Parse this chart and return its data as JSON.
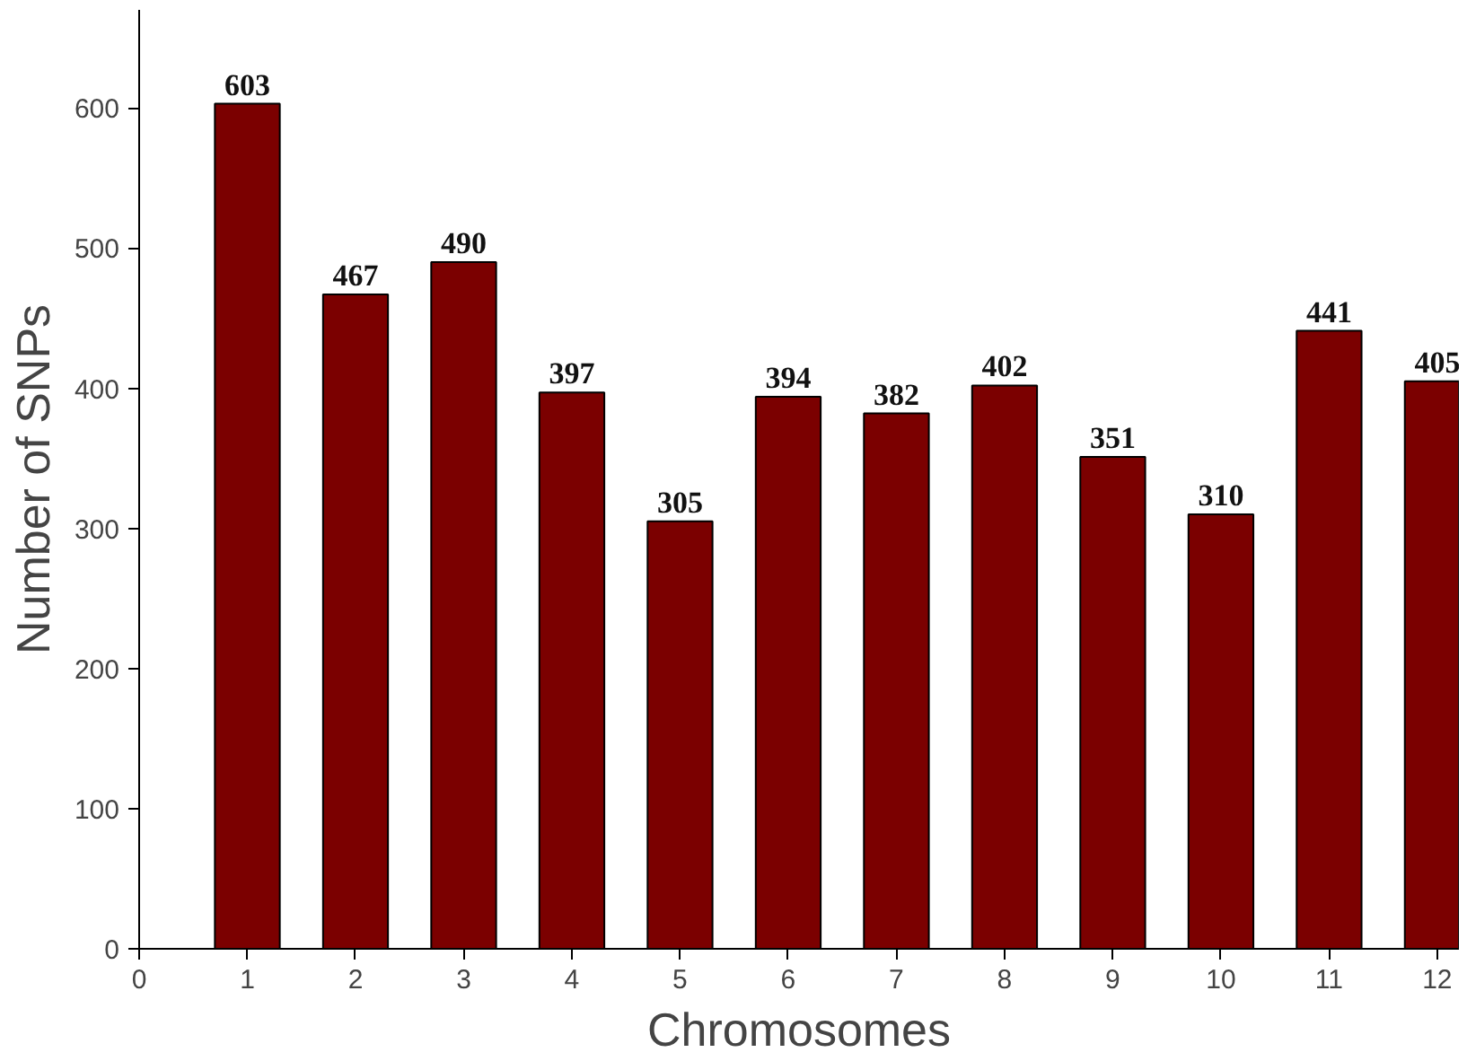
{
  "chart_data": {
    "type": "bar",
    "xlabel": "Chromosomes",
    "ylabel": "Number of SNPs",
    "x": [
      1,
      2,
      3,
      4,
      5,
      6,
      7,
      8,
      9,
      10,
      11,
      12
    ],
    "values": [
      603,
      467,
      490,
      397,
      305,
      394,
      382,
      402,
      351,
      310,
      441,
      405
    ],
    "color": "#7b0000",
    "data_labels": true,
    "grid": false,
    "xlim": [
      0,
      12.2
    ],
    "xticks": [
      0,
      1,
      2,
      3,
      4,
      5,
      6,
      7,
      8,
      9,
      10,
      11,
      12
    ],
    "ylim": [
      0,
      670
    ],
    "yticks": [
      0,
      100,
      200,
      300,
      400,
      500,
      600
    ]
  }
}
